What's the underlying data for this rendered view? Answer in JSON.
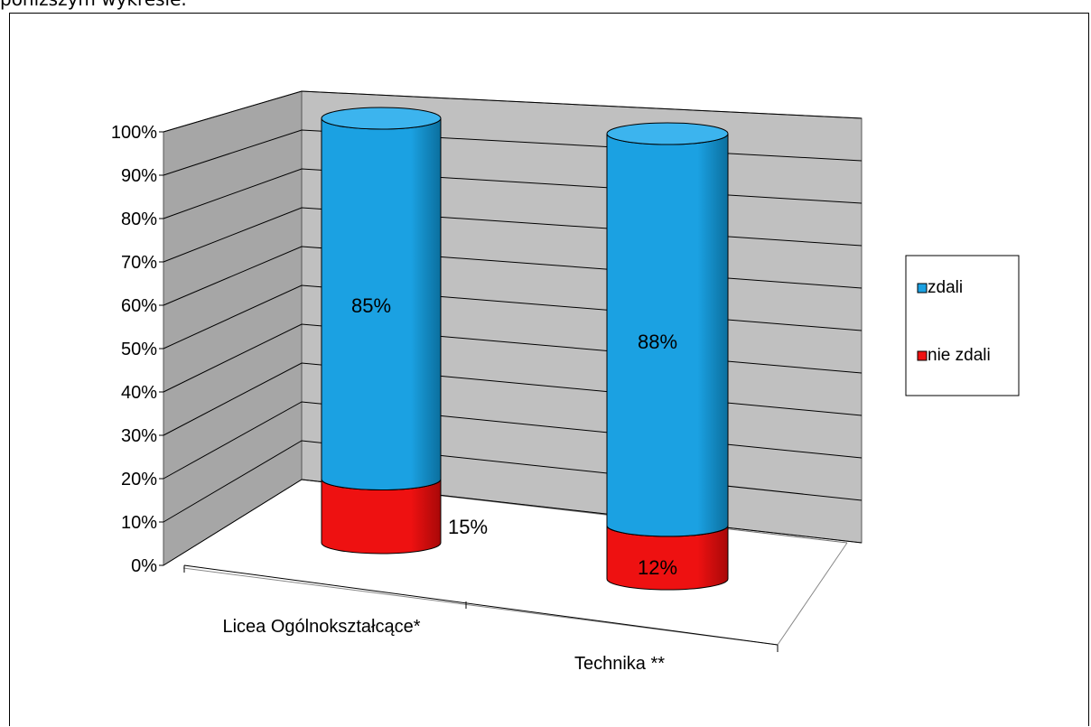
{
  "page_text": "poniższym wykresie.",
  "colors": {
    "zdali": "#1ba1e2",
    "zdali_dark": "#0b6f9e",
    "zdali_top": "#3cb4ee",
    "nie_zdali": "#ee1111",
    "nie_zdali_dark": "#a80808",
    "wall": "#c0c0c0",
    "wall_side": "#a6a6a6",
    "gridline": "#000000"
  },
  "chart_data": {
    "type": "bar",
    "subtype": "3d-stacked-cylinder-percent",
    "title": "",
    "xlabel": "",
    "ylabel": "",
    "categories": [
      "Licea Ogólnokształcące*",
      "Technika **"
    ],
    "series": [
      {
        "name": "zdali",
        "values": [
          85,
          88
        ],
        "labels": [
          "85%",
          "88%"
        ]
      },
      {
        "name": "nie zdali",
        "values": [
          15,
          12
        ],
        "labels": [
          "15%",
          "12%"
        ]
      }
    ],
    "ylim": [
      0,
      100
    ],
    "yticks": [
      "0%",
      "10%",
      "20%",
      "30%",
      "40%",
      "50%",
      "60%",
      "70%",
      "80%",
      "90%",
      "100%"
    ],
    "grid": true,
    "legend": {
      "position": "right",
      "entries": [
        "zdali",
        "nie zdali"
      ]
    }
  }
}
